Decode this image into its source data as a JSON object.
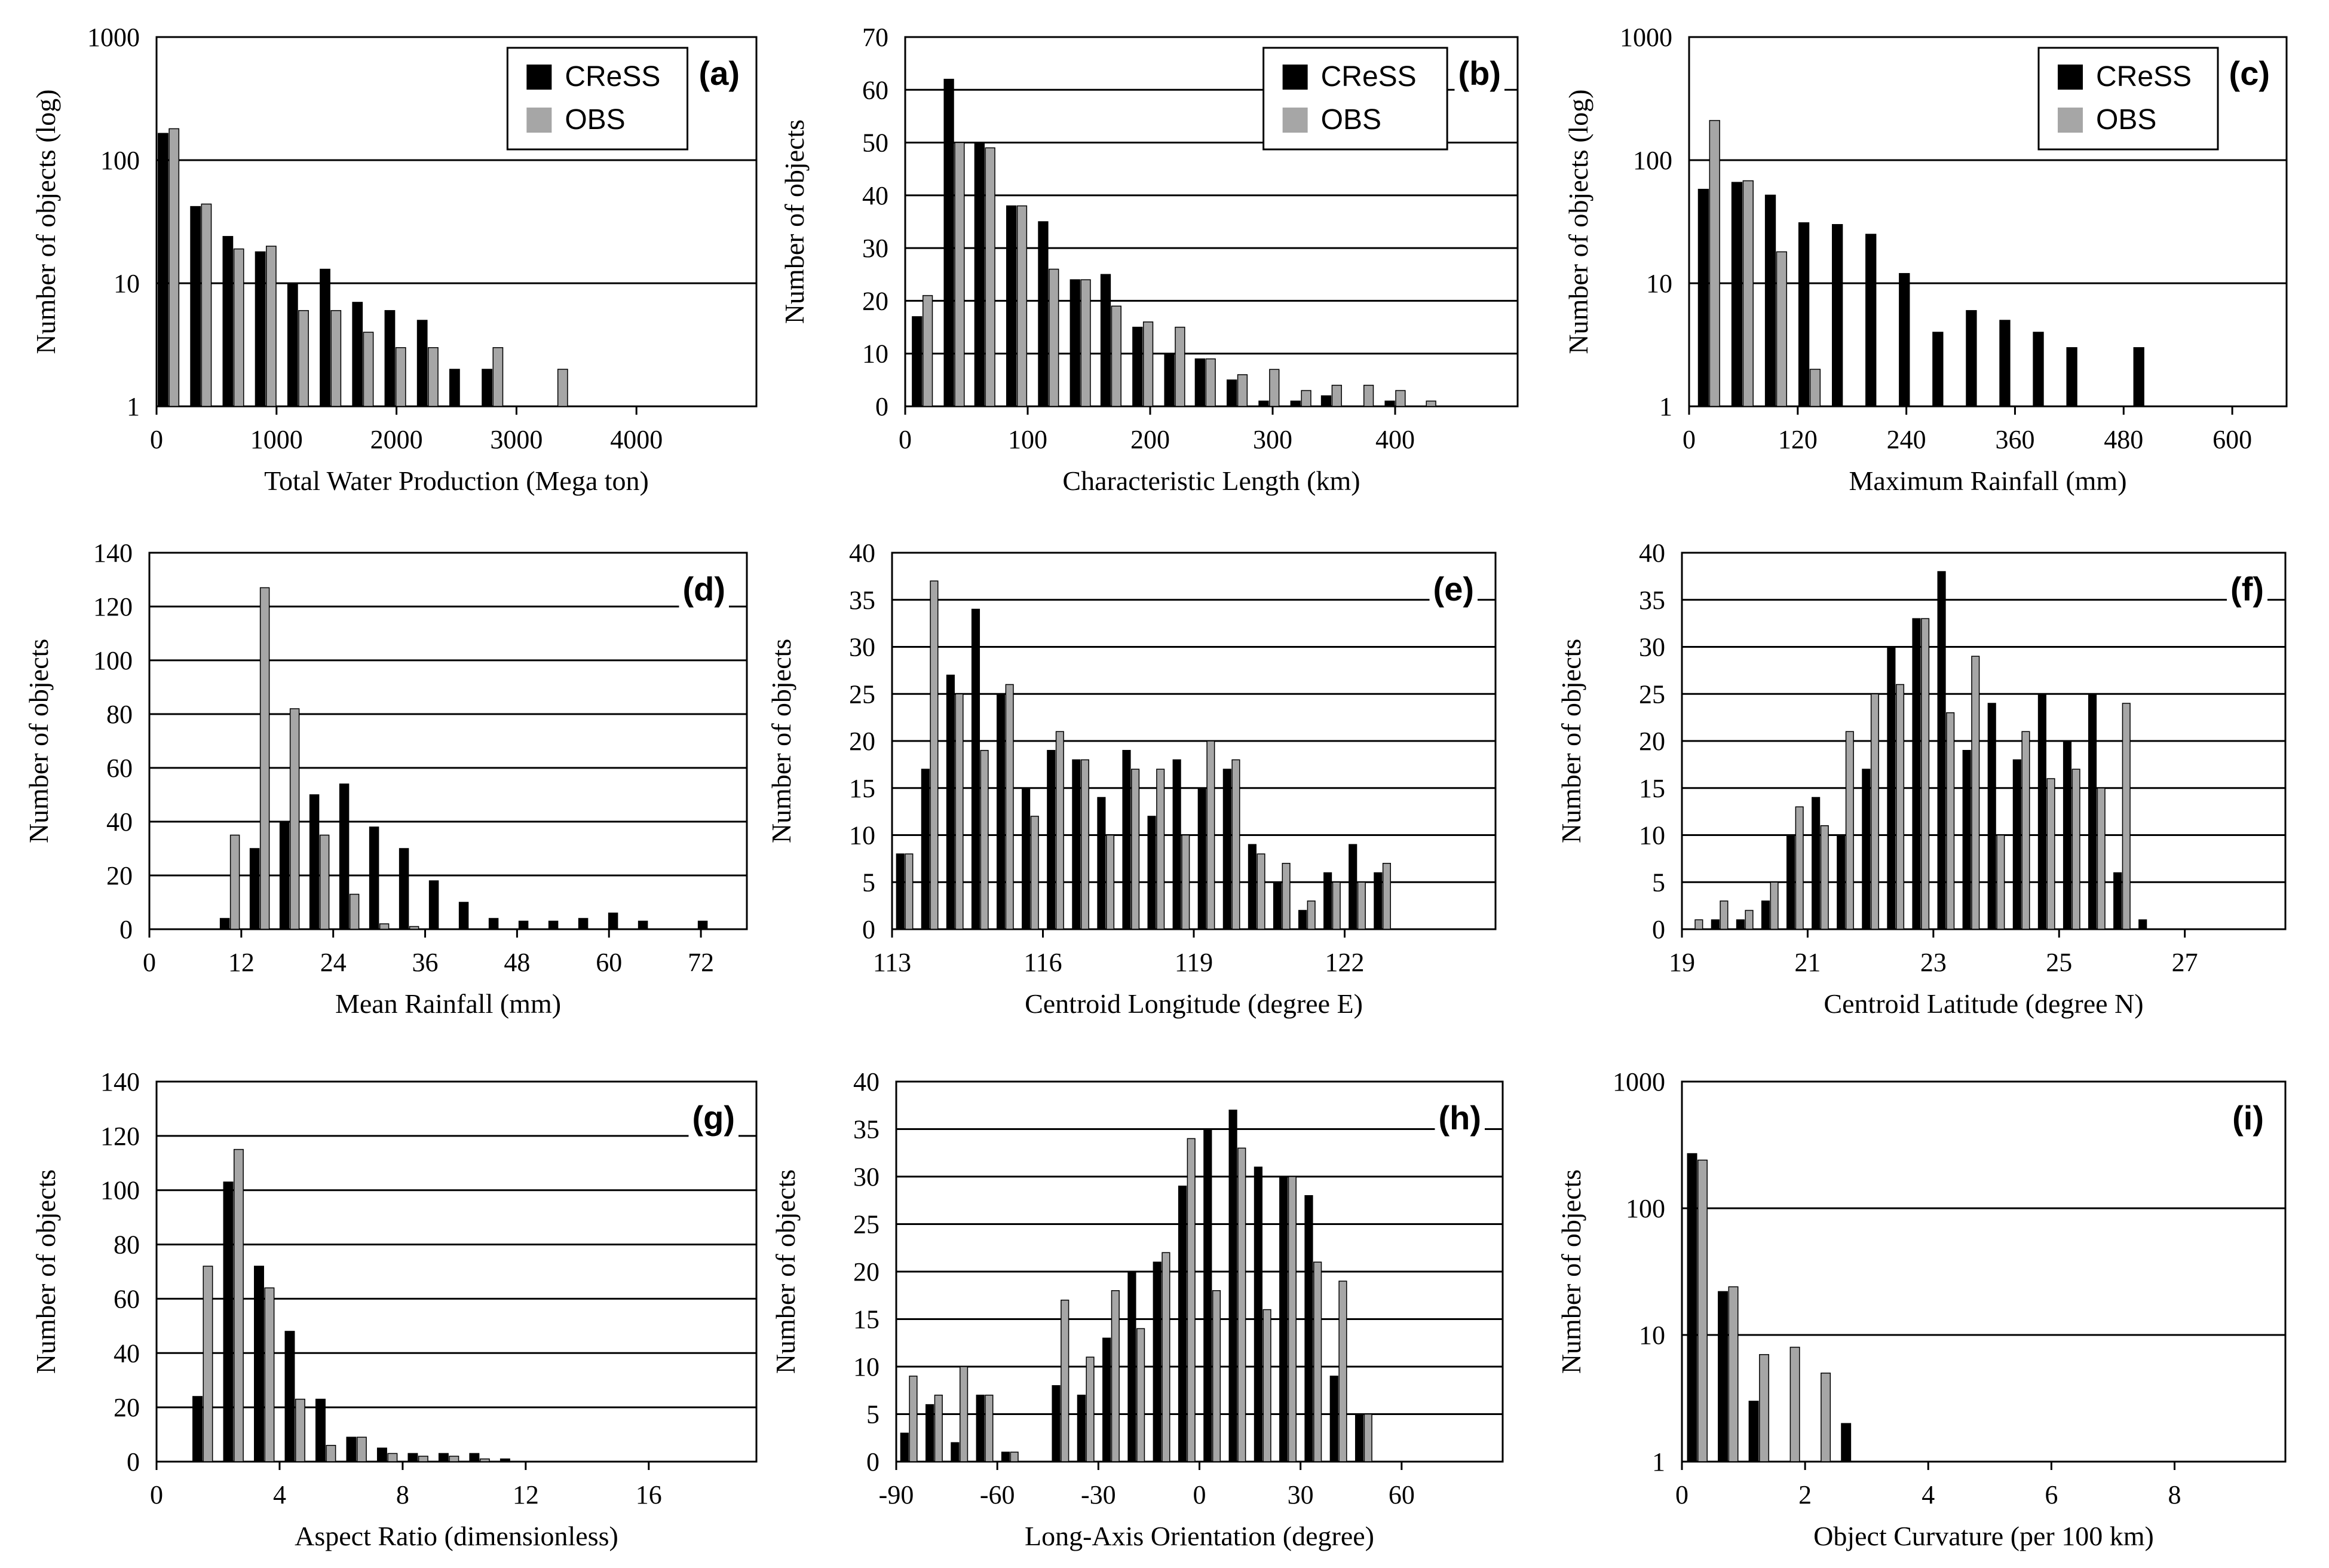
{
  "colors": {
    "model": "#000000",
    "obs": "#a6a6a6",
    "grid": "#000000"
  },
  "chart_data": [
    {
      "id": "a",
      "type": "bar",
      "scale": "log",
      "panel_label": "(a)",
      "xlabel": "Total Water Production (Mega ton)",
      "ylabel": "Number of objects (log)",
      "xlim": [
        0,
        5000
      ],
      "ylim": [
        1,
        1000
      ],
      "xticks": [
        0,
        1000,
        2000,
        3000,
        4000
      ],
      "yticks": [
        1,
        10,
        100,
        1000
      ],
      "legend": [
        "CReSS",
        "OBS"
      ],
      "bin_width": 270,
      "x": [
        100,
        370,
        640,
        910,
        1180,
        1450,
        1720,
        1990,
        2260,
        2530,
        2800,
        3070,
        3340,
        3610,
        3880,
        4150,
        4420,
        4690
      ],
      "series": [
        {
          "name": "CReSS",
          "values": [
            165,
            42,
            24,
            18,
            10,
            13,
            7,
            6,
            5,
            2,
            2,
            0,
            0,
            0,
            0,
            0,
            0,
            0
          ]
        },
        {
          "name": "OBS",
          "values": [
            180,
            44,
            19,
            20,
            6,
            6,
            4,
            3,
            3,
            0,
            3,
            0,
            2,
            0,
            0,
            0,
            0,
            0
          ]
        }
      ]
    },
    {
      "id": "b",
      "type": "bar",
      "scale": "linear",
      "panel_label": "(b)",
      "xlabel": "Characteristic Length (km)",
      "ylabel": "Number of objects",
      "xlim": [
        0,
        500
      ],
      "ylim": [
        0,
        70
      ],
      "xticks": [
        0,
        100,
        200,
        300,
        400
      ],
      "yticks": [
        0,
        10,
        20,
        30,
        40,
        50,
        60,
        70
      ],
      "legend": [
        "CReSS",
        "OBS"
      ],
      "bin_width": 25.7,
      "x": [
        14,
        40,
        65,
        91,
        117,
        143,
        168,
        194,
        220,
        245,
        271,
        297,
        323,
        348,
        374,
        400,
        425,
        451,
        477
      ],
      "series": [
        {
          "name": "CReSS",
          "values": [
            17,
            62,
            50,
            38,
            35,
            24,
            25,
            15,
            10,
            9,
            5,
            1,
            1,
            2,
            0,
            1,
            0,
            0,
            0
          ]
        },
        {
          "name": "OBS",
          "values": [
            21,
            50,
            49,
            38,
            26,
            24,
            19,
            16,
            15,
            9,
            6,
            7,
            3,
            4,
            4,
            3,
            1,
            0,
            0
          ]
        }
      ]
    },
    {
      "id": "c",
      "type": "bar",
      "scale": "log",
      "panel_label": "(c)",
      "xlabel": "Maximum Rainfall (mm)",
      "ylabel": "Number of objects (log)",
      "xlim": [
        0,
        660
      ],
      "ylim": [
        1,
        1000
      ],
      "xticks": [
        0,
        120,
        240,
        360,
        480,
        600
      ],
      "yticks": [
        1,
        10,
        100,
        1000
      ],
      "legend": [
        "CReSS",
        "OBS"
      ],
      "bin_width": 37,
      "x": [
        22,
        59,
        96,
        133,
        170,
        207,
        244,
        281,
        318,
        355,
        392,
        429,
        466,
        503,
        540,
        577,
        614,
        651
      ],
      "series": [
        {
          "name": "CReSS",
          "values": [
            58,
            66,
            52,
            31,
            30,
            25,
            12,
            4,
            6,
            5,
            4,
            3,
            0,
            3,
            0,
            0,
            0,
            0
          ]
        },
        {
          "name": "OBS",
          "values": [
            210,
            68,
            18,
            2,
            0,
            0,
            0,
            0,
            0,
            0,
            0,
            0,
            0,
            0,
            0,
            0,
            0,
            0
          ]
        }
      ]
    },
    {
      "id": "d",
      "type": "bar",
      "scale": "linear",
      "panel_label": "(d)",
      "xlabel": "Mean Rainfall (mm)",
      "ylabel": "Number of objects",
      "xlim": [
        0,
        78
      ],
      "ylim": [
        0,
        140
      ],
      "xticks": [
        0,
        12,
        24,
        36,
        48,
        60,
        72
      ],
      "yticks": [
        0,
        20,
        40,
        60,
        80,
        100,
        120,
        140
      ],
      "bin_width": 3.9,
      "x": [
        10.5,
        14.4,
        18.3,
        22.2,
        26.1,
        30.0,
        33.9,
        37.8,
        41.7,
        45.6,
        49.5,
        53.4,
        57.3,
        61.2,
        65.1,
        69.0,
        72.9,
        76.8
      ],
      "series": [
        {
          "name": "CReSS",
          "values": [
            4,
            30,
            40,
            50,
            54,
            38,
            30,
            18,
            10,
            4,
            3,
            3,
            4,
            6,
            3,
            0,
            3,
            0
          ]
        },
        {
          "name": "OBS",
          "values": [
            35,
            127,
            82,
            35,
            13,
            2,
            1,
            0,
            0,
            0,
            0,
            0,
            0,
            0,
            0,
            0,
            0,
            0
          ]
        }
      ]
    },
    {
      "id": "e",
      "type": "bar",
      "scale": "linear",
      "panel_label": "(e)",
      "xlabel": "Centroid Longitude (degree E)",
      "ylabel": "Number of objects",
      "xlim": [
        113,
        125
      ],
      "ylim": [
        0,
        40
      ],
      "xticks": [
        113,
        116,
        119,
        122
      ],
      "yticks": [
        0,
        5,
        10,
        15,
        20,
        25,
        30,
        35,
        40
      ],
      "bin_width": 0.5,
      "x": [
        113.25,
        113.75,
        114.25,
        114.75,
        115.25,
        115.75,
        116.25,
        116.75,
        117.25,
        117.75,
        118.25,
        118.75,
        119.25,
        119.75,
        120.25,
        120.75,
        121.25,
        121.75,
        122.25,
        122.75,
        123.25,
        123.75,
        124.25
      ],
      "series": [
        {
          "name": "CReSS",
          "values": [
            8,
            17,
            27,
            34,
            25,
            15,
            19,
            18,
            14,
            19,
            12,
            18,
            15,
            17,
            9,
            5,
            2,
            6,
            9,
            6,
            0,
            0,
            0
          ]
        },
        {
          "name": "OBS",
          "values": [
            8,
            37,
            25,
            19,
            26,
            12,
            21,
            18,
            10,
            17,
            17,
            10,
            20,
            18,
            8,
            7,
            3,
            5,
            5,
            7,
            0,
            0,
            0
          ]
        }
      ]
    },
    {
      "id": "f",
      "type": "bar",
      "scale": "linear",
      "panel_label": "(f)",
      "xlabel": "Centroid Latitude (degree N)",
      "ylabel": "Number of objects",
      "xlim": [
        19,
        28.6
      ],
      "ylim": [
        0,
        40
      ],
      "xticks": [
        19,
        21,
        23,
        25,
        27
      ],
      "yticks": [
        0,
        5,
        10,
        15,
        20,
        25,
        30,
        35,
        40
      ],
      "bin_width": 0.4,
      "x": [
        19.2,
        19.6,
        20.0,
        20.4,
        20.8,
        21.2,
        21.6,
        22.0,
        22.4,
        22.8,
        23.2,
        23.6,
        24.0,
        24.4,
        24.8,
        25.2,
        25.6,
        26.0,
        26.4,
        26.8,
        27.2,
        27.6,
        28.0,
        28.4
      ],
      "series": [
        {
          "name": "CReSS",
          "values": [
            0,
            1,
            1,
            3,
            10,
            14,
            10,
            17,
            30,
            33,
            38,
            19,
            24,
            18,
            25,
            20,
            25,
            6,
            1,
            0,
            0,
            0,
            0,
            0
          ]
        },
        {
          "name": "OBS",
          "values": [
            1,
            3,
            2,
            5,
            13,
            11,
            21,
            25,
            26,
            33,
            23,
            29,
            10,
            21,
            16,
            17,
            15,
            24,
            0,
            0,
            0,
            0,
            0,
            0
          ]
        }
      ]
    },
    {
      "id": "g",
      "type": "bar",
      "scale": "linear",
      "panel_label": "(g)",
      "xlabel": "Aspect Ratio (dimensionless)",
      "ylabel": "Number of objects",
      "xlim": [
        0,
        19.5
      ],
      "ylim": [
        0,
        140
      ],
      "xticks": [
        0,
        4,
        8,
        12,
        16
      ],
      "yticks": [
        0,
        20,
        40,
        60,
        80,
        100,
        120,
        140
      ],
      "bin_width": 1.0,
      "x": [
        1.5,
        2.5,
        3.5,
        4.5,
        5.5,
        6.5,
        7.5,
        8.5,
        9.5,
        10.5,
        11.5,
        12.5,
        13.5,
        14.5,
        15.5,
        16.5,
        17.5,
        18.5
      ],
      "series": [
        {
          "name": "CReSS",
          "values": [
            24,
            103,
            72,
            48,
            23,
            9,
            5,
            3,
            3,
            3,
            1,
            0,
            0,
            0,
            0,
            0,
            0,
            0
          ]
        },
        {
          "name": "OBS",
          "values": [
            72,
            115,
            64,
            23,
            6,
            9,
            3,
            2,
            2,
            1,
            0,
            0,
            0,
            0,
            0,
            0,
            0,
            0
          ]
        }
      ]
    },
    {
      "id": "h",
      "type": "bar",
      "scale": "linear",
      "panel_label": "(h)",
      "xlabel": "Long-Axis Orientation (degree)",
      "ylabel": "Number of objects",
      "xlim": [
        -90,
        90
      ],
      "ylim": [
        0,
        40
      ],
      "xticks": [
        -90,
        -60,
        -30,
        0,
        30,
        60
      ],
      "yticks": [
        0,
        5,
        10,
        15,
        20,
        25,
        30,
        35,
        40
      ],
      "bin_width": 7.5,
      "x": [
        -86.25,
        -78.75,
        -71.25,
        -63.75,
        -56.25,
        -48.75,
        -41.25,
        -33.75,
        -26.25,
        -18.75,
        -11.25,
        -3.75,
        3.75,
        11.25,
        18.75,
        26.25,
        33.75,
        41.25,
        48.75,
        56.25,
        63.75,
        71.25,
        78.75,
        86.25
      ],
      "series": [
        {
          "name": "CReSS",
          "values": [
            3,
            6,
            2,
            7,
            1,
            0,
            8,
            7,
            13,
            20,
            21,
            29,
            35,
            37,
            31,
            30,
            28,
            9,
            5,
            0,
            0,
            0,
            0,
            0
          ]
        },
        {
          "name": "OBS",
          "values": [
            9,
            7,
            10,
            7,
            1,
            0,
            17,
            11,
            18,
            14,
            22,
            34,
            18,
            33,
            16,
            30,
            21,
            19,
            5,
            0,
            0,
            0,
            0,
            0
          ]
        }
      ]
    },
    {
      "id": "i",
      "type": "bar",
      "scale": "log",
      "panel_label": "(i)",
      "xlabel": "Object Curvature (per 100 km)",
      "ylabel": "Number of objects",
      "xlim": [
        0,
        9.8
      ],
      "ylim": [
        1,
        1000
      ],
      "xticks": [
        0,
        2,
        4,
        6,
        8
      ],
      "yticks": [
        1,
        10,
        100,
        1000
      ],
      "bin_width": 0.5,
      "x": [
        0.25,
        0.75,
        1.25,
        1.75,
        2.25,
        2.75,
        3.25,
        3.75,
        4.25,
        4.75,
        5.25,
        5.75,
        6.25,
        6.75,
        7.25,
        7.75,
        8.25,
        8.75,
        9.25,
        9.75
      ],
      "series": [
        {
          "name": "CReSS",
          "values": [
            270,
            22,
            3,
            0,
            0,
            2,
            0,
            0,
            0,
            0,
            0,
            0,
            0,
            0,
            0,
            0,
            0,
            0,
            0,
            0
          ]
        },
        {
          "name": "OBS",
          "values": [
            240,
            24,
            7,
            8,
            5,
            0,
            0,
            0,
            0,
            0,
            0,
            0,
            0,
            0,
            0,
            0,
            0,
            0,
            0,
            0
          ]
        }
      ]
    }
  ]
}
